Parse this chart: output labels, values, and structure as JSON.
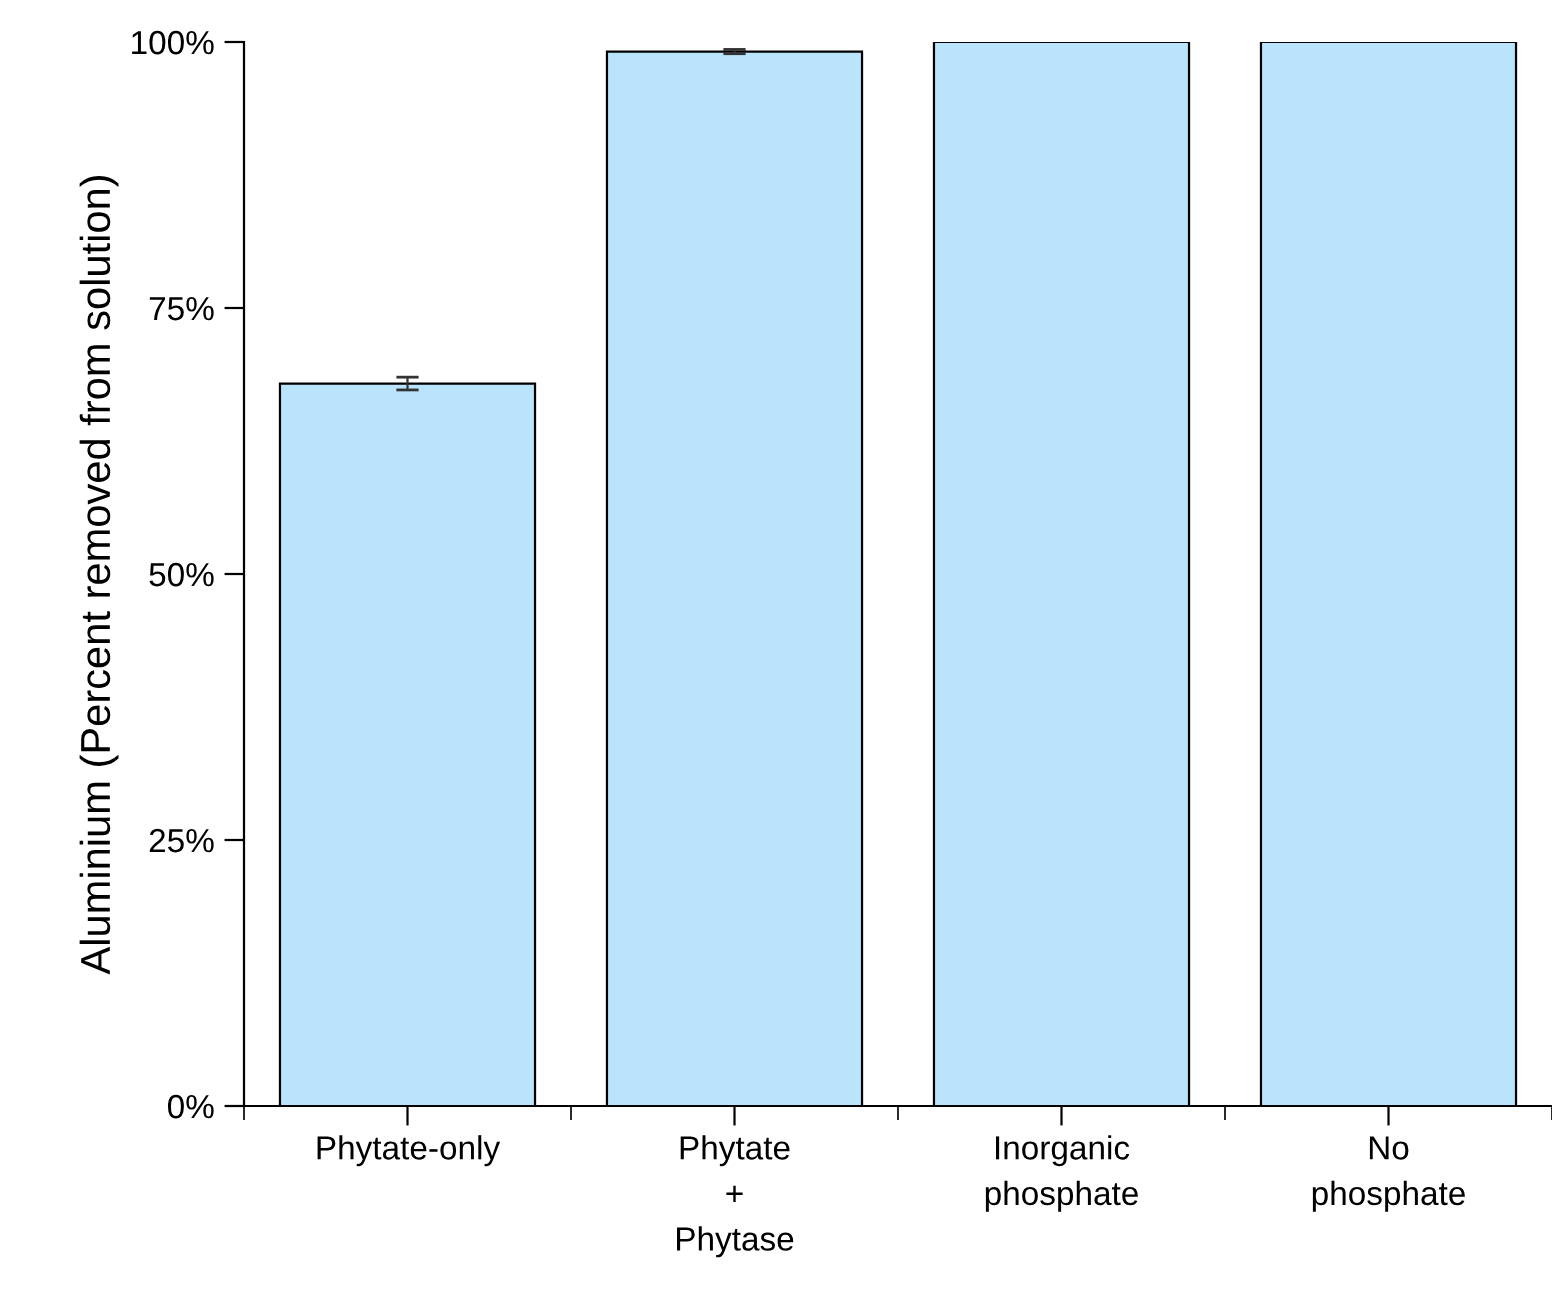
{
  "chart_data": {
    "type": "bar",
    "ylabel": "Aluminium (Percent removed from solution)",
    "categories": [
      "Phytate-only",
      "Phytate\n+\nPhytase",
      "Inorganic\nphosphate",
      "No\nphosphate"
    ],
    "values": [
      67.9,
      99.1,
      100,
      100
    ],
    "errors": [
      0.6,
      0.2,
      null,
      null
    ],
    "color": "#b9e4fc",
    "ylim": [
      0,
      100
    ],
    "yticks": [
      {
        "value": 0,
        "label": "0%"
      },
      {
        "value": 25,
        "label": "25%"
      },
      {
        "value": 50,
        "label": "50%"
      },
      {
        "value": 75,
        "label": "75%"
      },
      {
        "value": 100,
        "label": "100%"
      }
    ],
    "grid": false
  }
}
